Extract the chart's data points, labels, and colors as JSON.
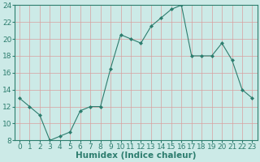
{
  "x": [
    0,
    1,
    2,
    3,
    4,
    5,
    6,
    7,
    8,
    9,
    10,
    11,
    12,
    13,
    14,
    15,
    16,
    17,
    18,
    19,
    20,
    21,
    22,
    23
  ],
  "y": [
    13,
    12,
    11,
    8,
    8.5,
    9,
    11.5,
    12,
    12,
    16.5,
    20.5,
    20,
    19.5,
    21.5,
    22.5,
    23.5,
    24,
    18,
    18,
    18,
    19.5,
    17.5,
    14,
    13
  ],
  "line_color": "#2d7d6e",
  "marker_color": "#2d7d6e",
  "bg_color": "#cceae7",
  "grid_color_minor": "#d8a0a0",
  "grid_color_major": "#d8a0a0",
  "title": "",
  "xlabel": "Humidex (Indice chaleur)",
  "ylim": [
    8,
    24
  ],
  "xlim": [
    -0.5,
    23.5
  ],
  "yticks": [
    8,
    10,
    12,
    14,
    16,
    18,
    20,
    22,
    24
  ],
  "xticks": [
    0,
    1,
    2,
    3,
    4,
    5,
    6,
    7,
    8,
    9,
    10,
    11,
    12,
    13,
    14,
    15,
    16,
    17,
    18,
    19,
    20,
    21,
    22,
    23
  ],
  "tick_color": "#2d7d6e",
  "label_color": "#2d7d6e",
  "axis_color": "#2d7d6e",
  "xlabel_fontsize": 7.5,
  "tick_fontsize": 6.5
}
